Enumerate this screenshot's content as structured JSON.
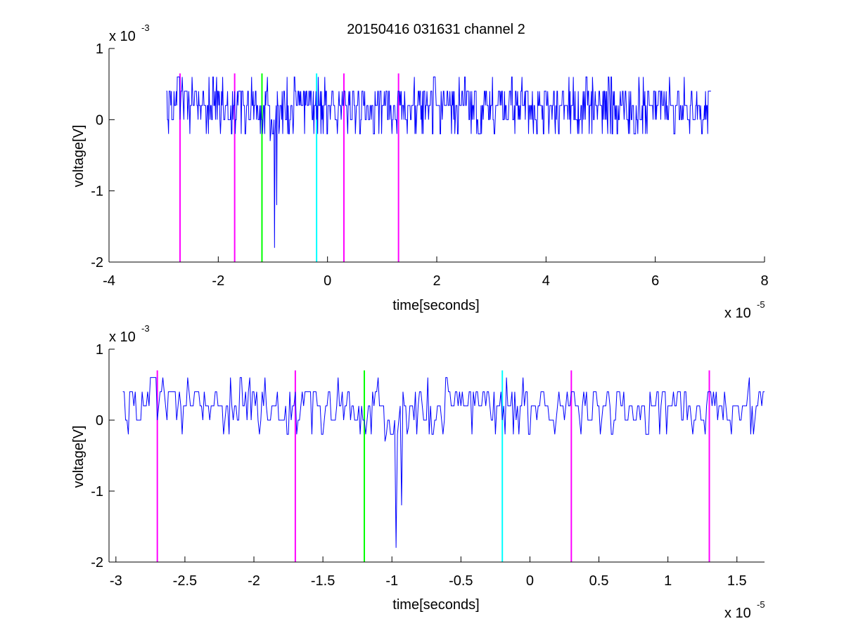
{
  "chart_data": [
    {
      "type": "line",
      "title": "20150416 031631 channel 2",
      "xlabel": "time[seconds]",
      "ylabel": "voltage[V]",
      "x_multiplier": "x 10",
      "x_exponent": "-5",
      "y_multiplier": "x 10",
      "y_exponent": "-3",
      "xlim": [
        -4,
        8
      ],
      "ylim": [
        -2,
        1
      ],
      "xticks": [
        -4,
        -2,
        0,
        2,
        4,
        6,
        8
      ],
      "xtick_labels": [
        "-4",
        "-2",
        "0",
        "2",
        "4",
        "6",
        "8"
      ],
      "yticks": [
        -2,
        -1,
        0,
        1
      ],
      "ytick_labels": [
        "-2",
        "-1",
        "0",
        "1"
      ],
      "grid": false,
      "series": [
        {
          "color": "#0000ff",
          "x_range": [
            -2.95,
            7.02
          ],
          "baseline_levels": [
            -0.2,
            0.0,
            0.2,
            0.4,
            0.6
          ],
          "events": [
            {
              "x": -1.05,
              "y": -0.3
            },
            {
              "x": -0.97,
              "y": -1.8
            },
            {
              "x": -0.93,
              "y": -1.2
            },
            {
              "x": -0.88,
              "y": -0.1
            }
          ]
        }
      ],
      "vertical_markers": [
        {
          "x": -2.7,
          "color": "#ff00ff"
        },
        {
          "x": -1.7,
          "color": "#ff00ff"
        },
        {
          "x": -1.2,
          "color": "#00ff00"
        },
        {
          "x": -0.2,
          "color": "#00ffff"
        },
        {
          "x": 0.3,
          "color": "#ff00ff"
        },
        {
          "x": 1.3,
          "color": "#ff00ff"
        }
      ],
      "marker_ylim": [
        -2,
        0.65
      ]
    },
    {
      "type": "line",
      "xlabel": "time[seconds]",
      "ylabel": "voltage[V]",
      "x_multiplier": "x 10",
      "x_exponent": "-5",
      "y_multiplier": "x 10",
      "y_exponent": "-3",
      "xlim": [
        -3.05,
        1.7
      ],
      "ylim": [
        -2,
        1
      ],
      "xticks": [
        -3,
        -2.5,
        -2,
        -1.5,
        -1,
        -0.5,
        0,
        0.5,
        1,
        1.5
      ],
      "xtick_labels": [
        "-3",
        "-2.5",
        "-2",
        "-1.5",
        "-1",
        "-0.5",
        "0",
        "0.5",
        "1",
        "1.5"
      ],
      "yticks": [
        -2,
        -1,
        0,
        1
      ],
      "ytick_labels": [
        "-2",
        "-1",
        "0",
        "1"
      ],
      "grid": false,
      "series": [
        {
          "color": "#0000ff",
          "x_range": [
            -2.95,
            1.7
          ],
          "baseline_levels": [
            -0.2,
            0.0,
            0.2,
            0.4,
            0.6
          ],
          "events": [
            {
              "x": -1.05,
              "y": -0.3
            },
            {
              "x": -0.97,
              "y": -1.8
            },
            {
              "x": -0.93,
              "y": -1.2
            },
            {
              "x": -0.88,
              "y": -0.1
            }
          ]
        }
      ],
      "vertical_markers": [
        {
          "x": -2.7,
          "color": "#ff00ff"
        },
        {
          "x": -1.7,
          "color": "#ff00ff"
        },
        {
          "x": -1.2,
          "color": "#00ff00"
        },
        {
          "x": -0.2,
          "color": "#00ffff"
        },
        {
          "x": 0.3,
          "color": "#ff00ff"
        },
        {
          "x": 1.3,
          "color": "#ff00ff"
        }
      ],
      "marker_ylim": [
        -2,
        0.7
      ]
    }
  ]
}
